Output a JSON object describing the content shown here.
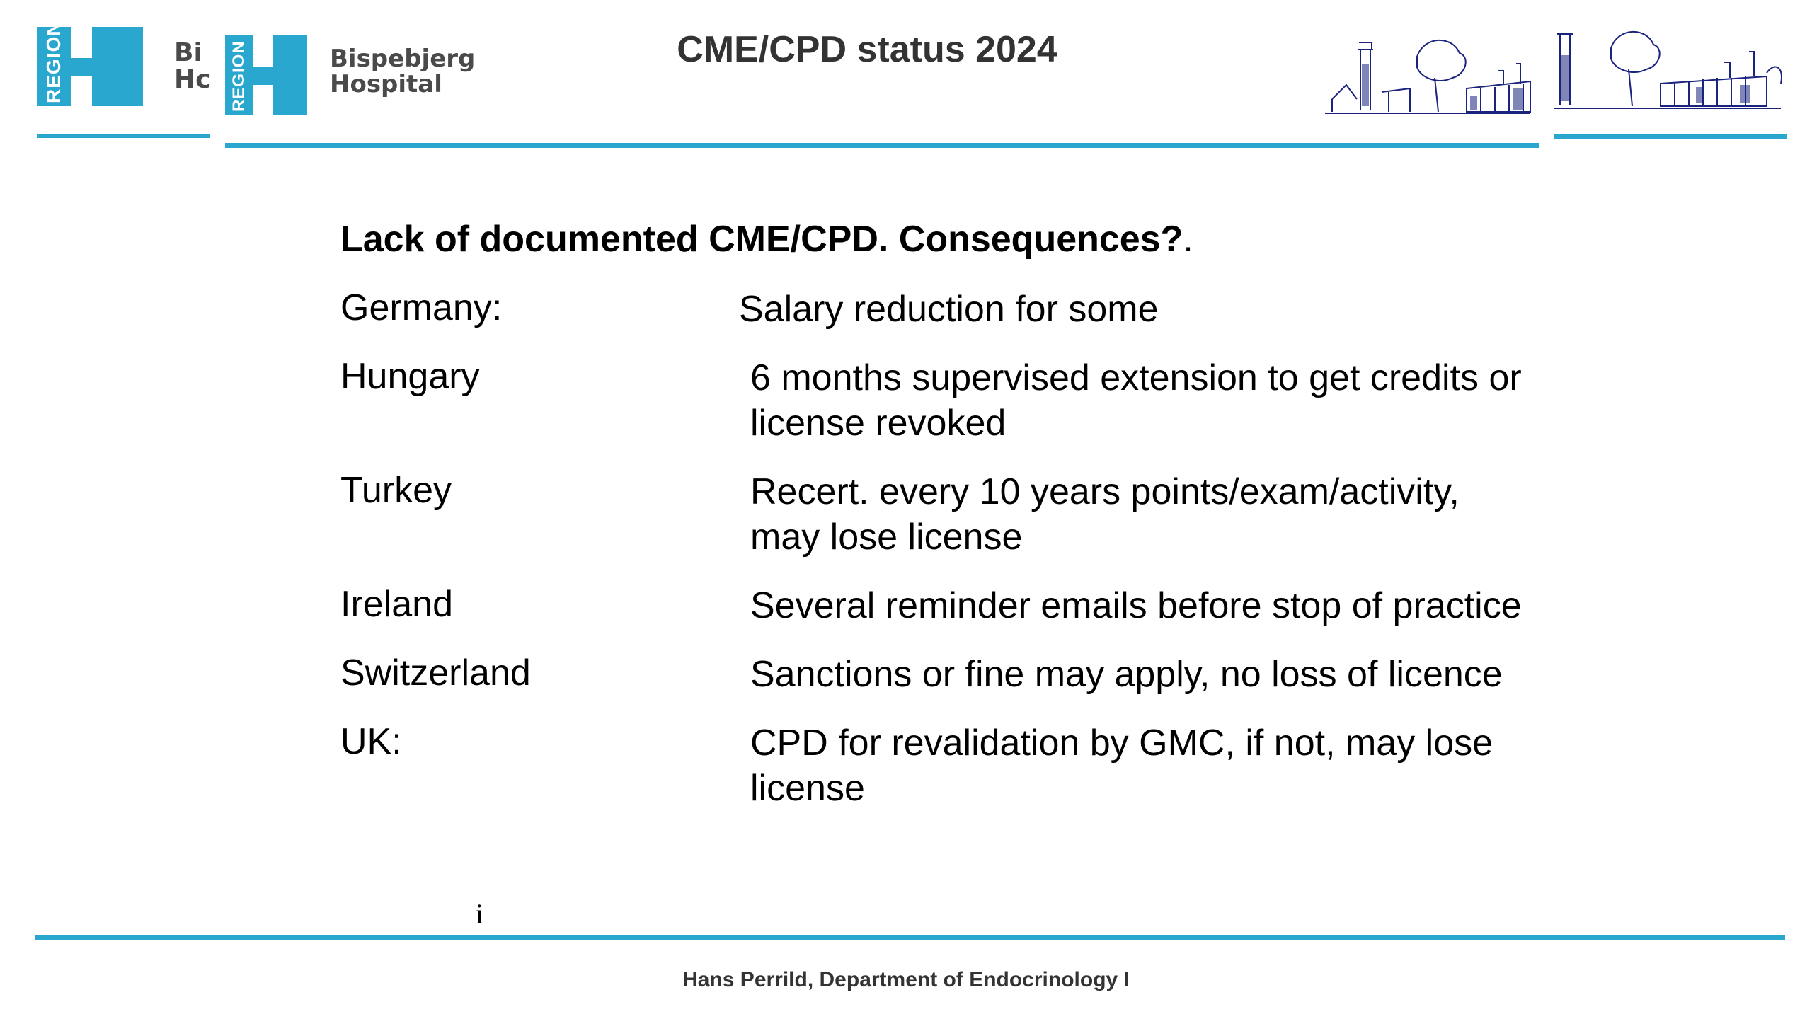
{
  "header": {
    "title": "CME/CPD status 2024",
    "logo_region_text": "REGION",
    "logo_name_line1": "Bispebjerg",
    "logo_name_line2": "Hospital",
    "logo_partial_line1": "Bi",
    "logo_partial_line2": "Hc",
    "accent_color": "#2aa7cf"
  },
  "content": {
    "heading": "Lack of documented CME/CPD. Consequences?",
    "heading_tail": ".",
    "rows": [
      {
        "country": "Germany:",
        "consequence": "Salary reduction for some"
      },
      {
        "country": "Hungary",
        "consequence": "6 months supervised extension to get credits or license revoked"
      },
      {
        "country": "Turkey",
        "consequence": "Recert. every 10 years points/exam/activity, may lose  license"
      },
      {
        "country": "Ireland",
        "consequence": "Several reminder emails before stop of practice"
      },
      {
        "country": "Switzerland",
        "consequence": "Sanctions or fine may apply, no loss of licence"
      },
      {
        "country": "UK:",
        "consequence": "CPD for revalidation by GMC, if not,  may lose license"
      }
    ],
    "stray_char": "i"
  },
  "footer": {
    "text": "Hans Perrild, Department of Endocrinology I"
  }
}
